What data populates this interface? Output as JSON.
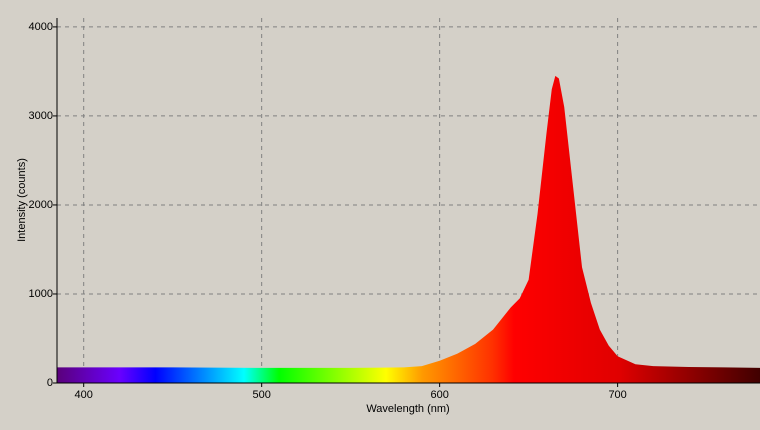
{
  "chart_data": {
    "type": "area",
    "x_label": "Wavelength (nm)",
    "y_label": "Intensity (counts)",
    "x": [
      385,
      400,
      450,
      500,
      550,
      580,
      590,
      600,
      610,
      620,
      630,
      640,
      645,
      650,
      655,
      660,
      663,
      665,
      667,
      670,
      675,
      680,
      685,
      690,
      695,
      700,
      710,
      720,
      740,
      760,
      780
    ],
    "values": [
      175,
      175,
      175,
      170,
      170,
      175,
      190,
      250,
      330,
      440,
      600,
      850,
      950,
      1160,
      1900,
      2800,
      3300,
      3450,
      3420,
      3100,
      2200,
      1300,
      900,
      600,
      420,
      300,
      210,
      190,
      180,
      175,
      170
    ],
    "xlim": [
      385,
      780
    ],
    "ylim": [
      0,
      4100
    ],
    "xticks": [
      400,
      500,
      600,
      700
    ],
    "yticks": [
      0,
      1000,
      2000,
      3000,
      4000
    ],
    "grid": true
  }
}
